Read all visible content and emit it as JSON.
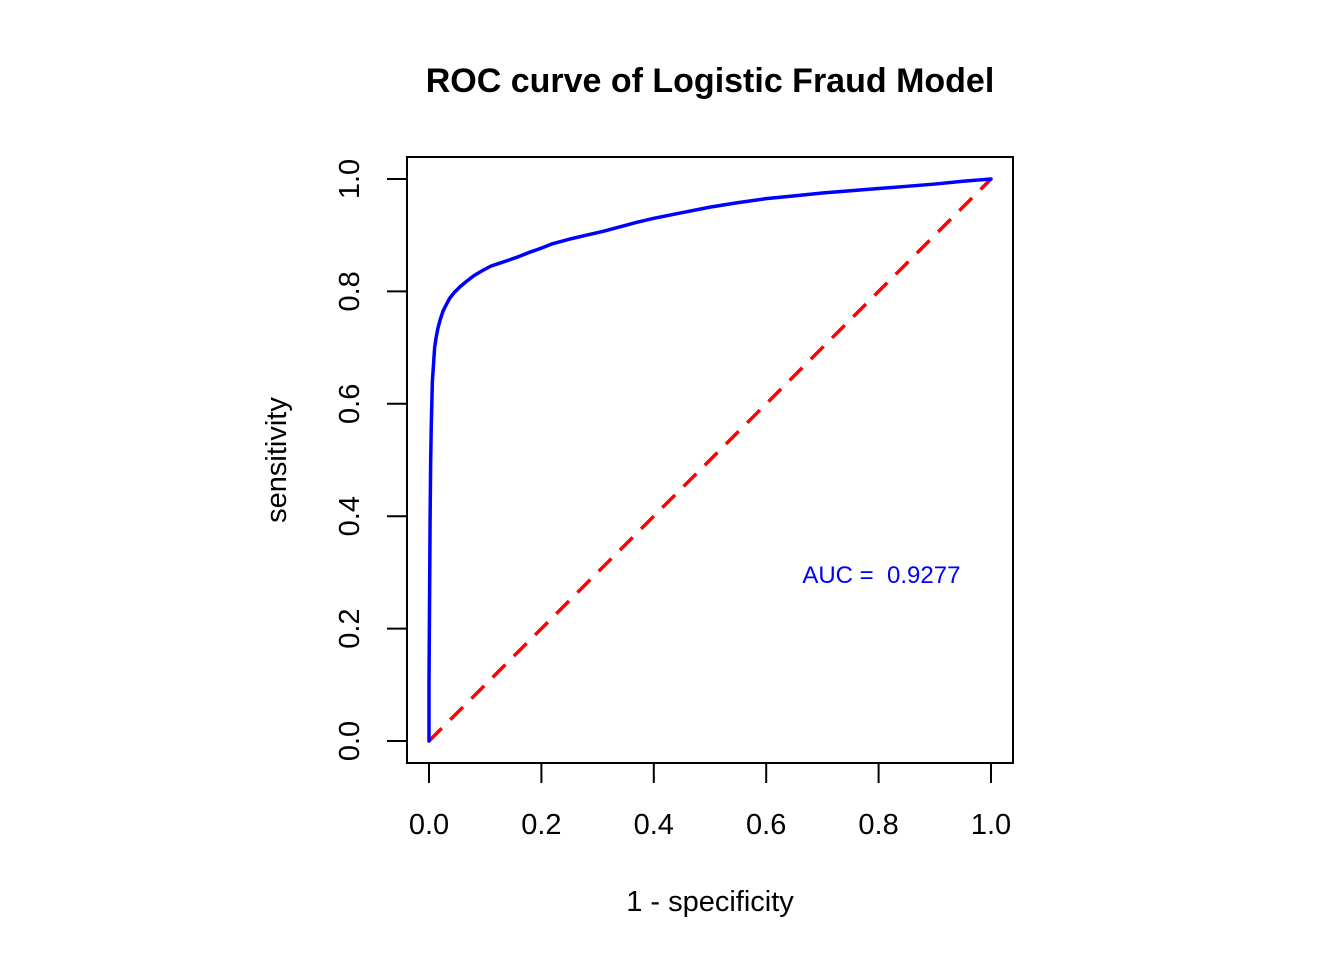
{
  "chart_data": {
    "type": "line",
    "title": "ROC curve of Logistic Fraud Model",
    "xlabel": "1 - specificity",
    "ylabel": "sensitivity",
    "xlim": [
      0,
      1
    ],
    "ylim": [
      0,
      1
    ],
    "x_ticks": [
      0.0,
      0.2,
      0.4,
      0.6,
      0.8,
      1.0
    ],
    "x_tick_labels": [
      "0.0",
      "0.2",
      "0.4",
      "0.6",
      "0.8",
      "1.0"
    ],
    "y_ticks": [
      0.0,
      0.2,
      0.4,
      0.6,
      0.8,
      1.0
    ],
    "y_tick_labels": [
      "0.0",
      "0.2",
      "0.4",
      "0.6",
      "0.8",
      "1.0"
    ],
    "grid": false,
    "series": [
      {
        "color": "#0000ff",
        "line_style": "solid",
        "x": [
          0.0,
          0.0,
          0.001,
          0.002,
          0.003,
          0.004,
          0.005,
          0.006,
          0.008,
          0.01,
          0.013,
          0.016,
          0.02,
          0.025,
          0.03,
          0.037,
          0.045,
          0.055,
          0.067,
          0.08,
          0.095,
          0.11,
          0.125,
          0.14,
          0.16,
          0.18,
          0.2,
          0.22,
          0.25,
          0.28,
          0.31,
          0.34,
          0.37,
          0.4,
          0.45,
          0.5,
          0.55,
          0.6,
          0.65,
          0.7,
          0.75,
          0.8,
          0.85,
          0.9,
          0.95,
          1.0
        ],
        "y": [
          0.0,
          0.1,
          0.25,
          0.4,
          0.5,
          0.56,
          0.6,
          0.64,
          0.67,
          0.7,
          0.72,
          0.735,
          0.75,
          0.765,
          0.775,
          0.788,
          0.798,
          0.808,
          0.818,
          0.828,
          0.837,
          0.845,
          0.85,
          0.855,
          0.862,
          0.87,
          0.877,
          0.885,
          0.893,
          0.9,
          0.907,
          0.915,
          0.923,
          0.93,
          0.94,
          0.95,
          0.958,
          0.965,
          0.97,
          0.975,
          0.979,
          0.983,
          0.987,
          0.991,
          0.996,
          1.0
        ]
      },
      {
        "color": "#ff0000",
        "line_style": "dashed",
        "x": [
          0.0,
          1.0
        ],
        "y": [
          0.0,
          1.0
        ]
      }
    ],
    "annotations": [
      {
        "text": "AUC =  0.9277",
        "x": 0.805,
        "y": 0.295,
        "color": "#0000ff"
      }
    ]
  }
}
